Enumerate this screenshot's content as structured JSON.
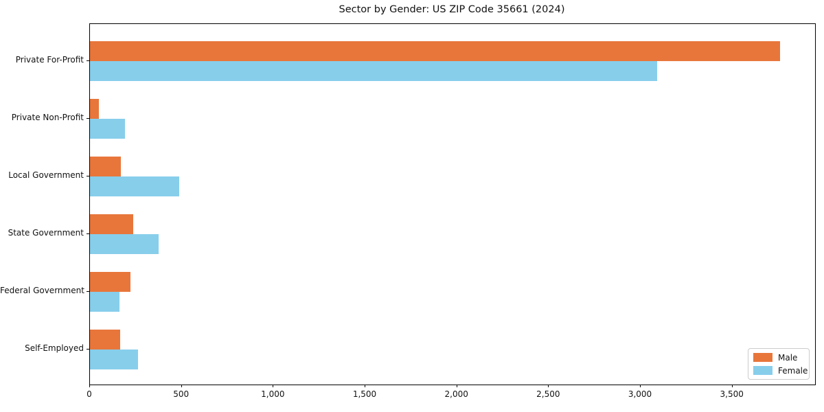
{
  "chart_data": {
    "type": "bar",
    "orientation": "horizontal",
    "title": "Sector by Gender: US ZIP Code 35661 (2024)",
    "xlabel": "",
    "ylabel": "",
    "categories": [
      "Private For-Profit",
      "Private Non-Profit",
      "Local Government",
      "State Government",
      "Federal Government",
      "Self-Employed"
    ],
    "series": [
      {
        "name": "Male",
        "color": "#e8763b",
        "values": [
          3760,
          50,
          170,
          235,
          220,
          165
        ]
      },
      {
        "name": "Female",
        "color": "#87ceeb",
        "values": [
          3090,
          190,
          485,
          375,
          160,
          260
        ]
      }
    ],
    "xlim": [
      0,
      3950
    ],
    "xticks": [
      0,
      500,
      1000,
      1500,
      2000,
      2500,
      3000,
      3500
    ],
    "xtick_labels": [
      "0",
      "500",
      "1,000",
      "1,500",
      "2,000",
      "2,500",
      "3,000",
      "3,500"
    ],
    "grid": false,
    "legend_position": "lower right",
    "background_color": "#ffffff",
    "spine_color": "#000000"
  }
}
